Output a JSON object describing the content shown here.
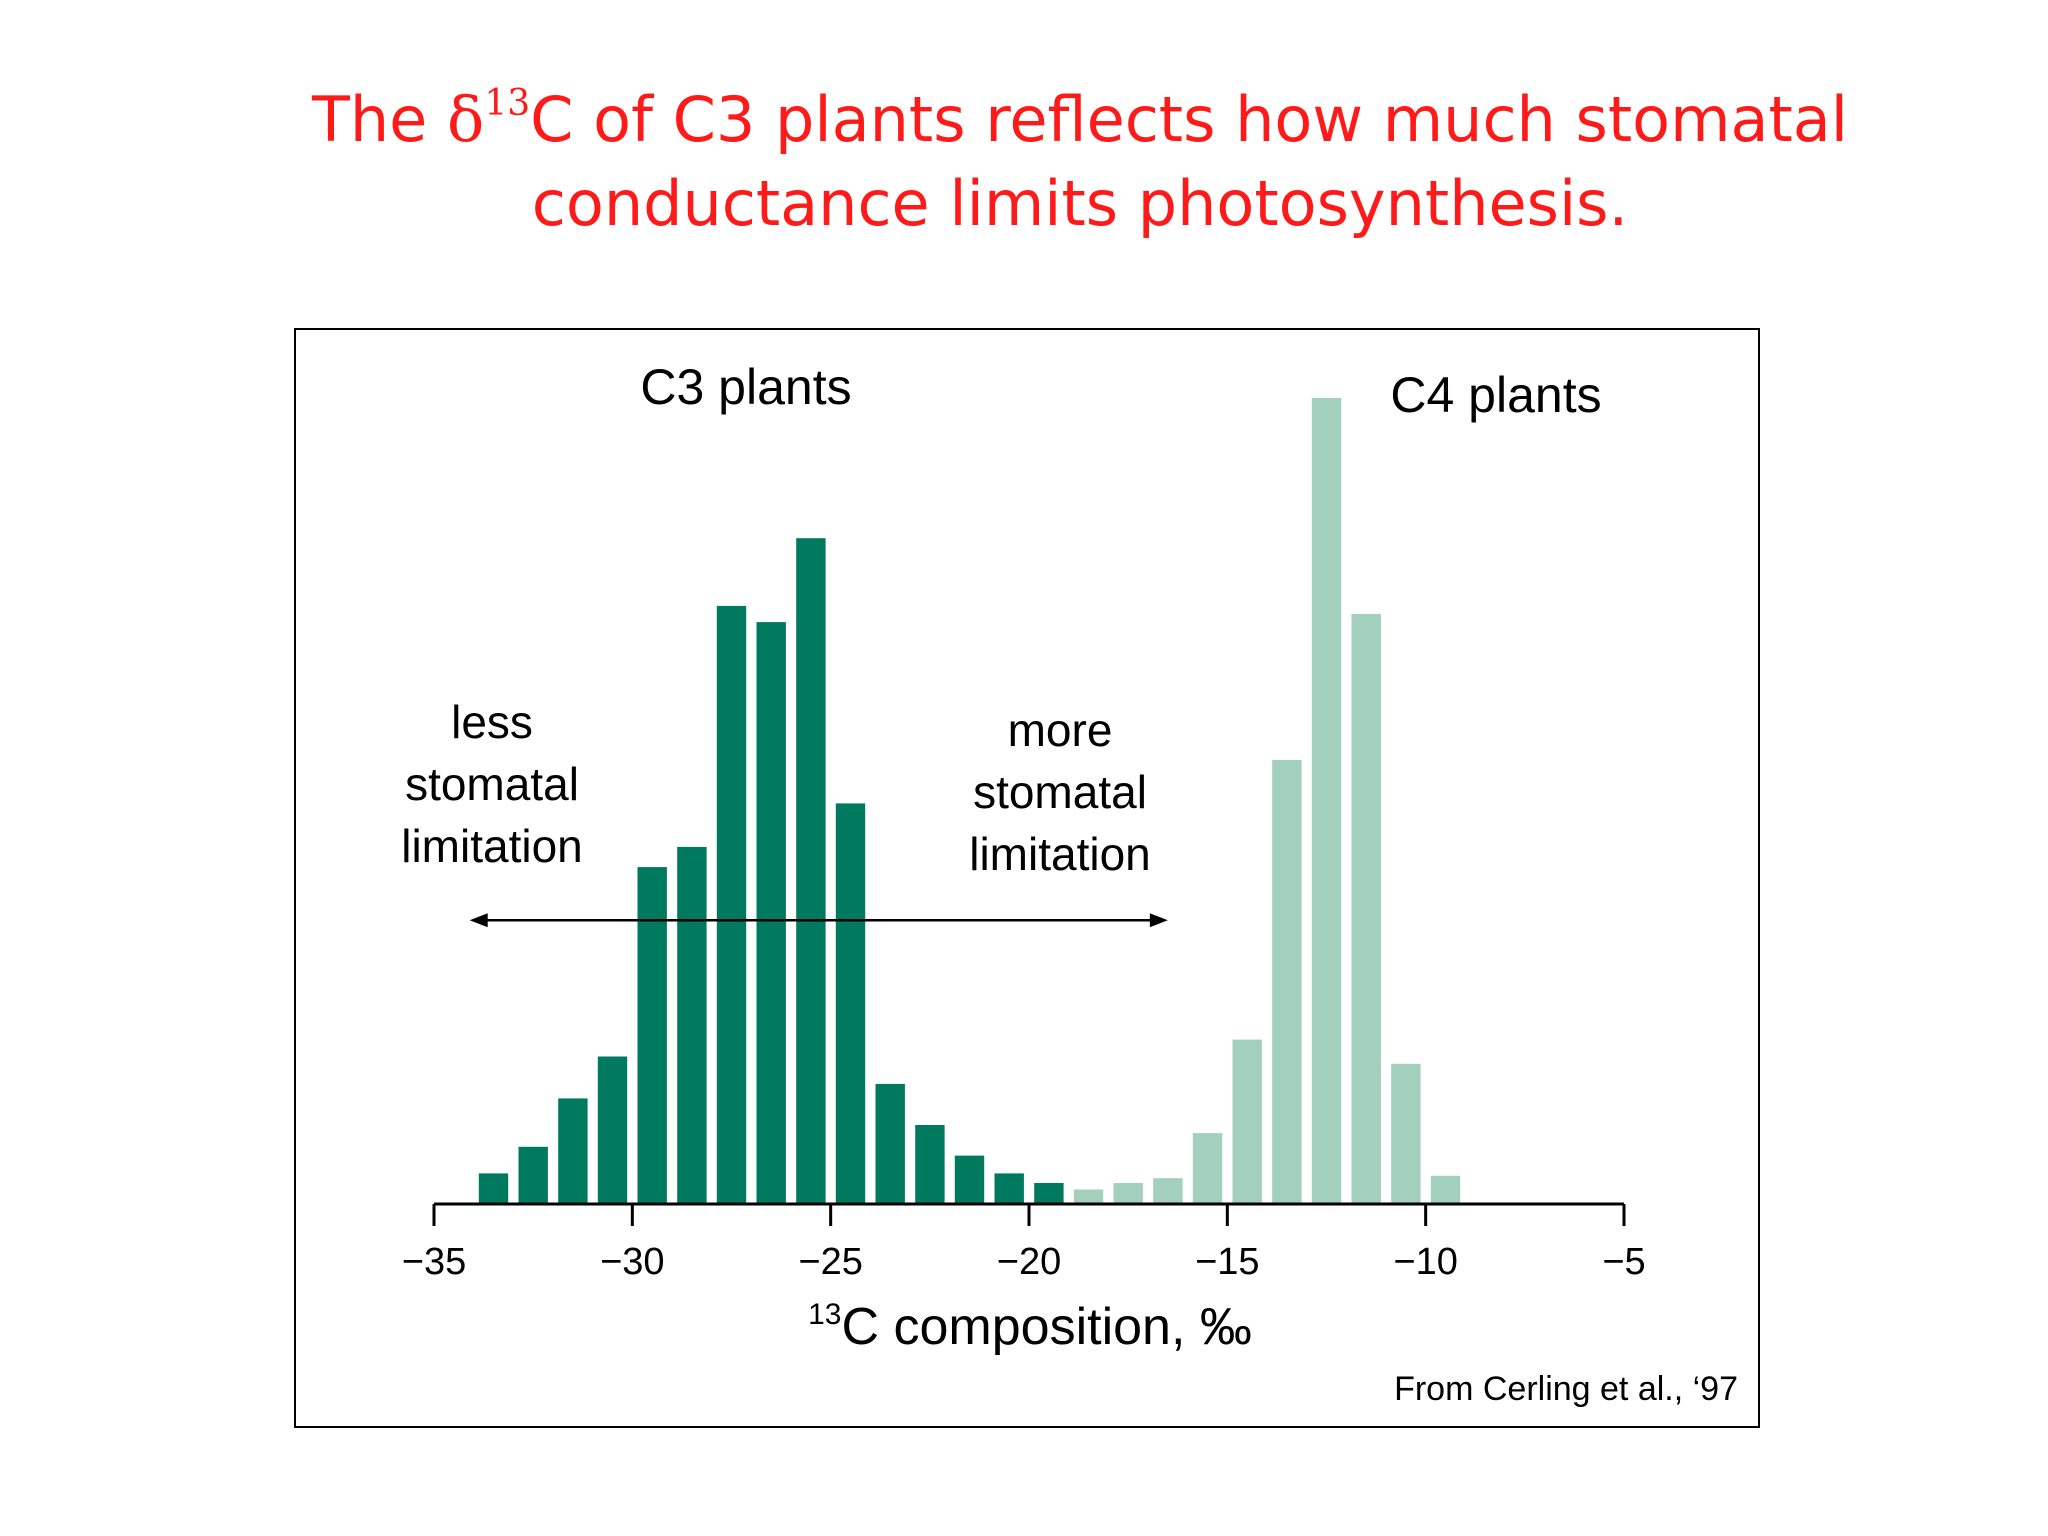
{
  "slide": {
    "title_line1_pre": "The ",
    "title_delta": "δ",
    "title_sup": "13",
    "title_line1_post": "C of C3 plants reflects how much stomatal",
    "title_line2": "conductance limits photosynthesis."
  },
  "chart_data": {
    "type": "bar",
    "xlim": [
      -35,
      -5
    ],
    "ylim": [
      0,
      100
    ],
    "xticks": [
      -35,
      -30,
      -25,
      -20,
      -15,
      -10,
      -5
    ],
    "xtick_labels": [
      "−35",
      "−30",
      "−25",
      "−20",
      "−15",
      "−10",
      "−5"
    ],
    "grid": false,
    "xlabel_sup": "13",
    "xlabel": "C composition, ‰",
    "series": [
      {
        "name": "C3 plants",
        "color": "#007a5e",
        "x": [
          -33.5,
          -32.5,
          -31.5,
          -30.5,
          -29.5,
          -28.5,
          -27.5,
          -26.5,
          -25.5,
          -24.5,
          -23.5,
          -22.5,
          -21.5,
          -20.5,
          -19.5
        ],
        "values": [
          3.8,
          7.1,
          13.1,
          18.3,
          41.8,
          44.3,
          74.2,
          72.2,
          82.6,
          49.7,
          14.9,
          9.8,
          6.0,
          3.8,
          2.6
        ]
      },
      {
        "name": "C4 plants",
        "color": "#a3cfbd",
        "x": [
          -18.5,
          -17.5,
          -16.5,
          -15.5,
          -14.5,
          -13.5,
          -12.5,
          -11.5,
          -10.5,
          -9.5
        ],
        "values": [
          1.8,
          2.6,
          3.2,
          8.8,
          20.4,
          55.1,
          100,
          73.2,
          17.4,
          3.5
        ]
      }
    ],
    "annotations": {
      "less_lines": [
        "less",
        "stomatal",
        "limitation"
      ],
      "more_lines": [
        "more",
        "stomatal",
        "limitation"
      ],
      "arrow_from": -34.1,
      "arrow_to": -16.5,
      "arrow_level": 35.2
    },
    "source": "From Cerling et al., ‘97"
  }
}
